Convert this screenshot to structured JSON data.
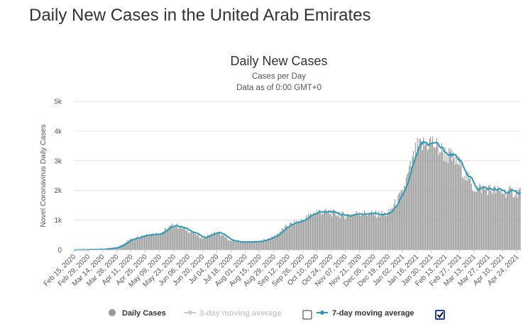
{
  "page": {
    "title": "Daily New Cases in the United Arab Emirates"
  },
  "chart_data": {
    "type": "bar",
    "title": "Daily New Cases",
    "subtitle": "Cases per Day",
    "subtitle2": "Data as of 0:00 GMT+0",
    "ylabel": "Novel Coronavirus Daily Cases",
    "xlabel": "",
    "ylim": [
      0,
      5000
    ],
    "yticks": [
      "0",
      "1k",
      "2k",
      "3k",
      "4k",
      "5k"
    ],
    "ytick_values": [
      0,
      1000,
      2000,
      3000,
      4000,
      5000
    ],
    "grid": true,
    "x_start": "2020-02-15",
    "x_end": "2021-04-28",
    "xticks": [
      "Feb 15, 2020",
      "Feb 29, 2020",
      "Mar 14, 2020",
      "Mar 28, 2020",
      "Apr 11, 2020",
      "Apr 25, 2020",
      "May 09, 2020",
      "May 23, 2020",
      "Jun 06, 2020",
      "Jun 20, 2020",
      "Jul 04, 2020",
      "Jul 18, 2020",
      "Aug 01, 2020",
      "Aug 15, 2020",
      "Aug 29, 2020",
      "Sep 12, 2020",
      "Sep 26, 2020",
      "Oct 10, 2020",
      "Oct 24, 2020",
      "Nov 07, 2020",
      "Nov 21, 2020",
      "Dec 05, 2020",
      "Dec 19, 2020",
      "Jan 02, 2021",
      "Jan 16, 2021",
      "Jan 30, 2021",
      "Feb 13, 2021",
      "Feb 27, 2021",
      "Mar 13, 2021",
      "Mar 27, 2021",
      "Apr 10, 2021",
      "Apr 24, 2021"
    ],
    "daily_cases_approx": [
      {
        "date": "2020-02-15",
        "value": 0
      },
      {
        "date": "2020-03-14",
        "value": 20
      },
      {
        "date": "2020-03-28",
        "value": 80
      },
      {
        "date": "2020-04-11",
        "value": 380
      },
      {
        "date": "2020-04-25",
        "value": 520
      },
      {
        "date": "2020-05-09",
        "value": 560
      },
      {
        "date": "2020-05-23",
        "value": 850
      },
      {
        "date": "2020-06-06",
        "value": 650
      },
      {
        "date": "2020-06-20",
        "value": 400
      },
      {
        "date": "2020-07-04",
        "value": 600
      },
      {
        "date": "2020-07-18",
        "value": 300
      },
      {
        "date": "2020-08-01",
        "value": 260
      },
      {
        "date": "2020-08-15",
        "value": 280
      },
      {
        "date": "2020-08-29",
        "value": 450
      },
      {
        "date": "2020-09-12",
        "value": 830
      },
      {
        "date": "2020-09-26",
        "value": 1000
      },
      {
        "date": "2020-10-10",
        "value": 1300
      },
      {
        "date": "2020-10-24",
        "value": 1250
      },
      {
        "date": "2020-11-07",
        "value": 1150
      },
      {
        "date": "2020-11-21",
        "value": 1250
      },
      {
        "date": "2020-12-05",
        "value": 1200
      },
      {
        "date": "2020-12-19",
        "value": 1200
      },
      {
        "date": "2021-01-02",
        "value": 1900
      },
      {
        "date": "2021-01-16",
        "value": 3400
      },
      {
        "date": "2021-01-30",
        "value": 3650
      },
      {
        "date": "2021-02-13",
        "value": 3250
      },
      {
        "date": "2021-02-27",
        "value": 2900
      },
      {
        "date": "2021-03-13",
        "value": 2100
      },
      {
        "date": "2021-03-27",
        "value": 2050
      },
      {
        "date": "2021-04-10",
        "value": 1950
      },
      {
        "date": "2021-04-24",
        "value": 1950
      },
      {
        "date": "2021-04-28",
        "value": 2000
      }
    ],
    "series": [
      {
        "name": "Daily Cases",
        "color": "#999999",
        "visible": true
      },
      {
        "name": "3-day moving average",
        "color": "#cccccc",
        "visible": false
      },
      {
        "name": "7-day moving average",
        "color": "#2e9ab8",
        "visible": true
      }
    ],
    "legend": {
      "placement": "bottom",
      "checkbox_3day": false,
      "checkbox_7day": true
    }
  }
}
